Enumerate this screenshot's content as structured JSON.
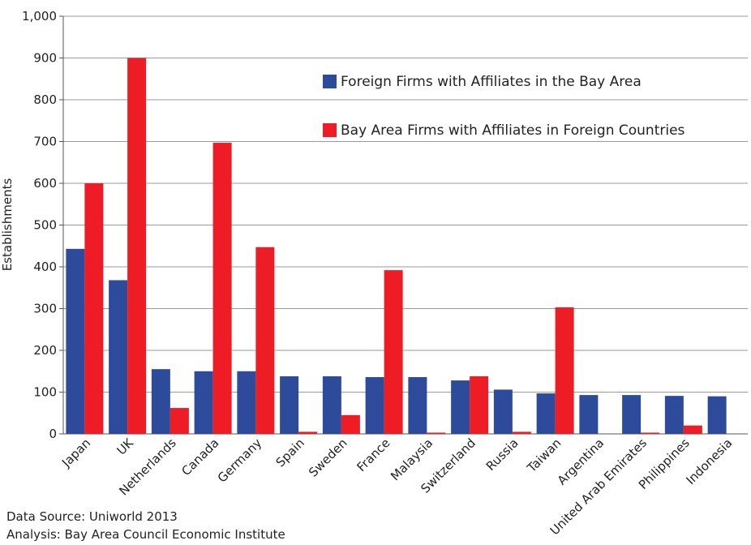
{
  "chart_data": {
    "type": "bar",
    "ylabel": "Establishments",
    "categories": [
      "Japan",
      "UK",
      "Netherlands",
      "Canada",
      "Germany",
      "Spain",
      "Sweden",
      "France",
      "Malaysia",
      "Switzerland",
      "Russia",
      "Taiwan",
      "Argentina",
      "United Arab Emirates",
      "Philippines",
      "Indonesia"
    ],
    "series": [
      {
        "name": "Foreign Firms with Affiliates in the Bay Area",
        "color": "#2e4a9b",
        "values": [
          443,
          368,
          155,
          150,
          150,
          138,
          138,
          136,
          136,
          128,
          106,
          97,
          93,
          93,
          91,
          90
        ]
      },
      {
        "name": "Bay Area Firms with Affiliates in Foreign Countries",
        "color": "#ee1c25",
        "values": [
          600,
          900,
          62,
          697,
          447,
          5,
          45,
          392,
          3,
          138,
          5,
          303,
          0,
          3,
          20,
          0
        ]
      }
    ],
    "ylim": [
      0,
      1000
    ],
    "yticks": [
      0,
      100,
      200,
      300,
      400,
      500,
      600,
      700,
      800,
      900,
      {
        "value": 1000,
        "label": "1,000"
      }
    ],
    "grid": true,
    "legend": "upper right",
    "notes": [
      "Data Source: Uniworld 2013",
      "Analysis: Bay Area Council Economic Institute"
    ]
  }
}
